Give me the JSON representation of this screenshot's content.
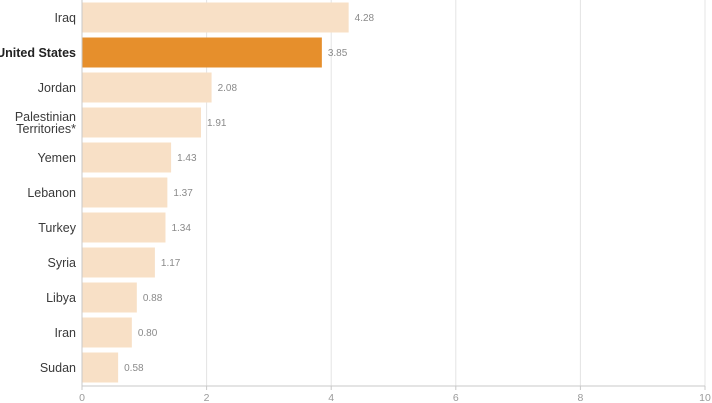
{
  "chart_data": {
    "type": "bar",
    "orientation": "horizontal",
    "categories": [
      "Iraq",
      "United States",
      "Jordan",
      "Palestinian Territories*",
      "Yemen",
      "Lebanon",
      "Turkey",
      "Syria",
      "Libya",
      "Iran",
      "Sudan"
    ],
    "category_lines": [
      [
        "Iraq"
      ],
      [
        "United States"
      ],
      [
        "Jordan"
      ],
      [
        "Palestinian",
        "Territories*"
      ],
      [
        "Yemen"
      ],
      [
        "Lebanon"
      ],
      [
        "Turkey"
      ],
      [
        "Syria"
      ],
      [
        "Libya"
      ],
      [
        "Iran"
      ],
      [
        "Sudan"
      ]
    ],
    "values": [
      4.28,
      3.85,
      2.08,
      1.91,
      1.43,
      1.37,
      1.34,
      1.17,
      0.88,
      0.8,
      0.58
    ],
    "value_labels": [
      "4.28",
      "3.85",
      "2.08",
      "1.91",
      "1.43",
      "1.37",
      "1.34",
      "1.17",
      "0.88",
      "0.80",
      "0.58"
    ],
    "highlight": "United States",
    "xlim": [
      0,
      10
    ],
    "xticks": [
      0,
      2,
      4,
      6,
      8,
      10
    ],
    "grid": true,
    "colors": {
      "bar": "#f8e0c6",
      "highlight": "#e68f2c",
      "grid": "#e4e4e4",
      "axis": "#c8c8c8"
    }
  }
}
